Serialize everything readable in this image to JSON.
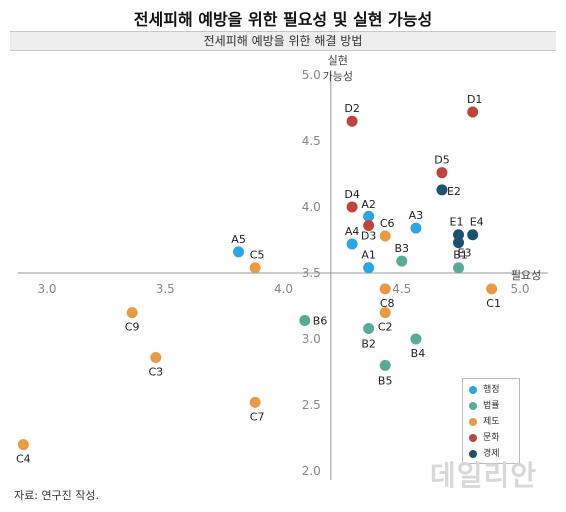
{
  "title": "전세피해 예방을 위한 필요성 및 실현 가능성",
  "subtitle": "전세피해 예방을 위한 해결 방법",
  "source": "자료: 연구진 작성.",
  "watermark": "데일리안",
  "chart_data": {
    "type": "scatter",
    "x_label": "필요성",
    "y_label_line1": "실현",
    "y_label_line2": "가능성",
    "xlim": [
      2.9,
      5.1
    ],
    "ylim": [
      2.0,
      5.0
    ],
    "x_ticks": [
      "3.0",
      "3.5",
      "4.0",
      "4.5",
      "5.0"
    ],
    "y_ticks": [
      "5.0",
      "4.5",
      "4.0",
      "3.5",
      "3.0",
      "2.5",
      "2.0"
    ],
    "series": [
      {
        "name": "행정",
        "color": "#2aa7e0",
        "points": [
          {
            "label": "A1",
            "x": 4.36,
            "y": 3.54
          },
          {
            "label": "A2",
            "x": 4.36,
            "y": 3.93
          },
          {
            "label": "A3",
            "x": 4.56,
            "y": 3.84
          },
          {
            "label": "A4",
            "x": 4.29,
            "y": 3.72
          },
          {
            "label": "A5",
            "x": 3.81,
            "y": 3.66
          }
        ]
      },
      {
        "name": "법률",
        "color": "#5aaa9a",
        "points": [
          {
            "label": "B1",
            "x": 4.74,
            "y": 3.54
          },
          {
            "label": "B2",
            "x": 4.36,
            "y": 3.08
          },
          {
            "label": "B3",
            "x": 4.5,
            "y": 3.59
          },
          {
            "label": "B4",
            "x": 4.56,
            "y": 3.0
          },
          {
            "label": "B5",
            "x": 4.43,
            "y": 2.8
          },
          {
            "label": "B6",
            "x": 4.09,
            "y": 3.14
          }
        ]
      },
      {
        "name": "제도",
        "color": "#e89a45",
        "points": [
          {
            "label": "C1",
            "x": 4.88,
            "y": 3.38
          },
          {
            "label": "C2",
            "x": 4.43,
            "y": 3.2
          },
          {
            "label": "C3",
            "x": 3.46,
            "y": 2.86
          },
          {
            "label": "C4",
            "x": 2.9,
            "y": 2.2
          },
          {
            "label": "C5",
            "x": 3.88,
            "y": 3.54
          },
          {
            "label": "C6",
            "x": 4.43,
            "y": 3.78
          },
          {
            "label": "C7",
            "x": 3.88,
            "y": 2.52
          },
          {
            "label": "C8",
            "x": 4.43,
            "y": 3.38
          },
          {
            "label": "C9",
            "x": 3.36,
            "y": 3.2
          }
        ]
      },
      {
        "name": "문화",
        "color": "#c0443c",
        "points": [
          {
            "label": "D1",
            "x": 4.8,
            "y": 4.72
          },
          {
            "label": "D2",
            "x": 4.29,
            "y": 4.65
          },
          {
            "label": "D3",
            "x": 4.36,
            "y": 3.86
          },
          {
            "label": "D4",
            "x": 4.29,
            "y": 4.0
          },
          {
            "label": "D5",
            "x": 4.67,
            "y": 4.26
          }
        ]
      },
      {
        "name": "경제",
        "color": "#1f5070",
        "points": [
          {
            "label": "E1",
            "x": 4.74,
            "y": 3.79
          },
          {
            "label": "E2",
            "x": 4.67,
            "y": 4.13
          },
          {
            "label": "E3",
            "x": 4.74,
            "y": 3.73
          },
          {
            "label": "E4",
            "x": 4.8,
            "y": 3.79
          }
        ]
      }
    ]
  }
}
